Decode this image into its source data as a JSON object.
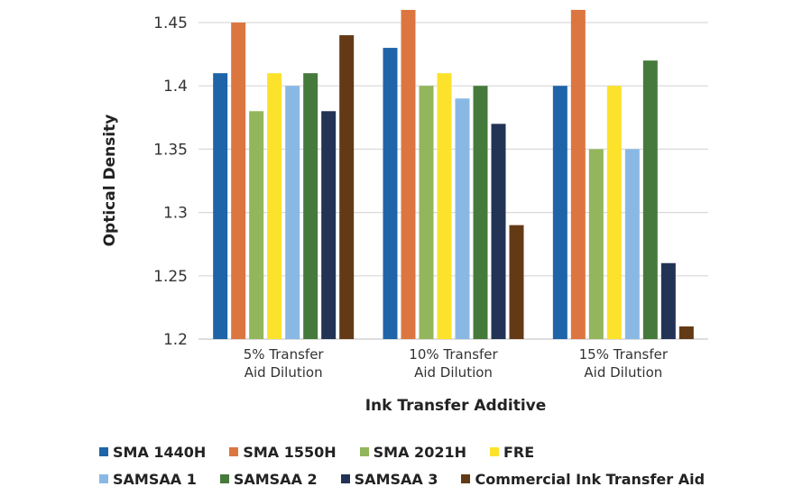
{
  "chart_data": {
    "type": "bar",
    "title": "",
    "xlabel": "Ink Transfer Additive",
    "ylabel": "Optical Density",
    "ylim": [
      1.2,
      1.45
    ],
    "yticks": [
      "1.2",
      "1.25",
      "1.3",
      "1.35",
      "1.4",
      "1.45"
    ],
    "ytick_values": [
      1.2,
      1.25,
      1.3,
      1.35,
      1.4,
      1.45
    ],
    "grid": true,
    "legend_position": "bottom",
    "categories": [
      [
        "5% Transfer",
        "Aid Dilution"
      ],
      [
        "10% Transfer",
        "Aid Dilution"
      ],
      [
        "15% Transfer",
        "Aid Dilution"
      ]
    ],
    "series": [
      {
        "name": "SMA 1440H",
        "color": "#1f64a8",
        "values": [
          1.41,
          1.43,
          1.4
        ]
      },
      {
        "name": "SMA 1550H",
        "color": "#dc7640",
        "values": [
          1.45,
          1.46,
          1.46
        ]
      },
      {
        "name": "SMA 2021H",
        "color": "#93b55c",
        "values": [
          1.38,
          1.4,
          1.35
        ]
      },
      {
        "name": "FRE",
        "color": "#fde22c",
        "values": [
          1.41,
          1.41,
          1.4
        ]
      },
      {
        "name": "SAMSAA 1",
        "color": "#89b8e5",
        "values": [
          1.4,
          1.39,
          1.35
        ]
      },
      {
        "name": "SAMSAA 2",
        "color": "#467a3c",
        "values": [
          1.41,
          1.4,
          1.42
        ]
      },
      {
        "name": "SAMSAA 3",
        "color": "#223355",
        "values": [
          1.38,
          1.37,
          1.26
        ]
      },
      {
        "name": "Commercial Ink Transfer Aid",
        "color": "#643a16",
        "values": [
          1.44,
          1.29,
          1.21
        ]
      }
    ]
  },
  "legend_rows": [
    [
      0,
      1,
      2,
      3
    ],
    [
      4,
      5,
      6,
      7
    ]
  ]
}
